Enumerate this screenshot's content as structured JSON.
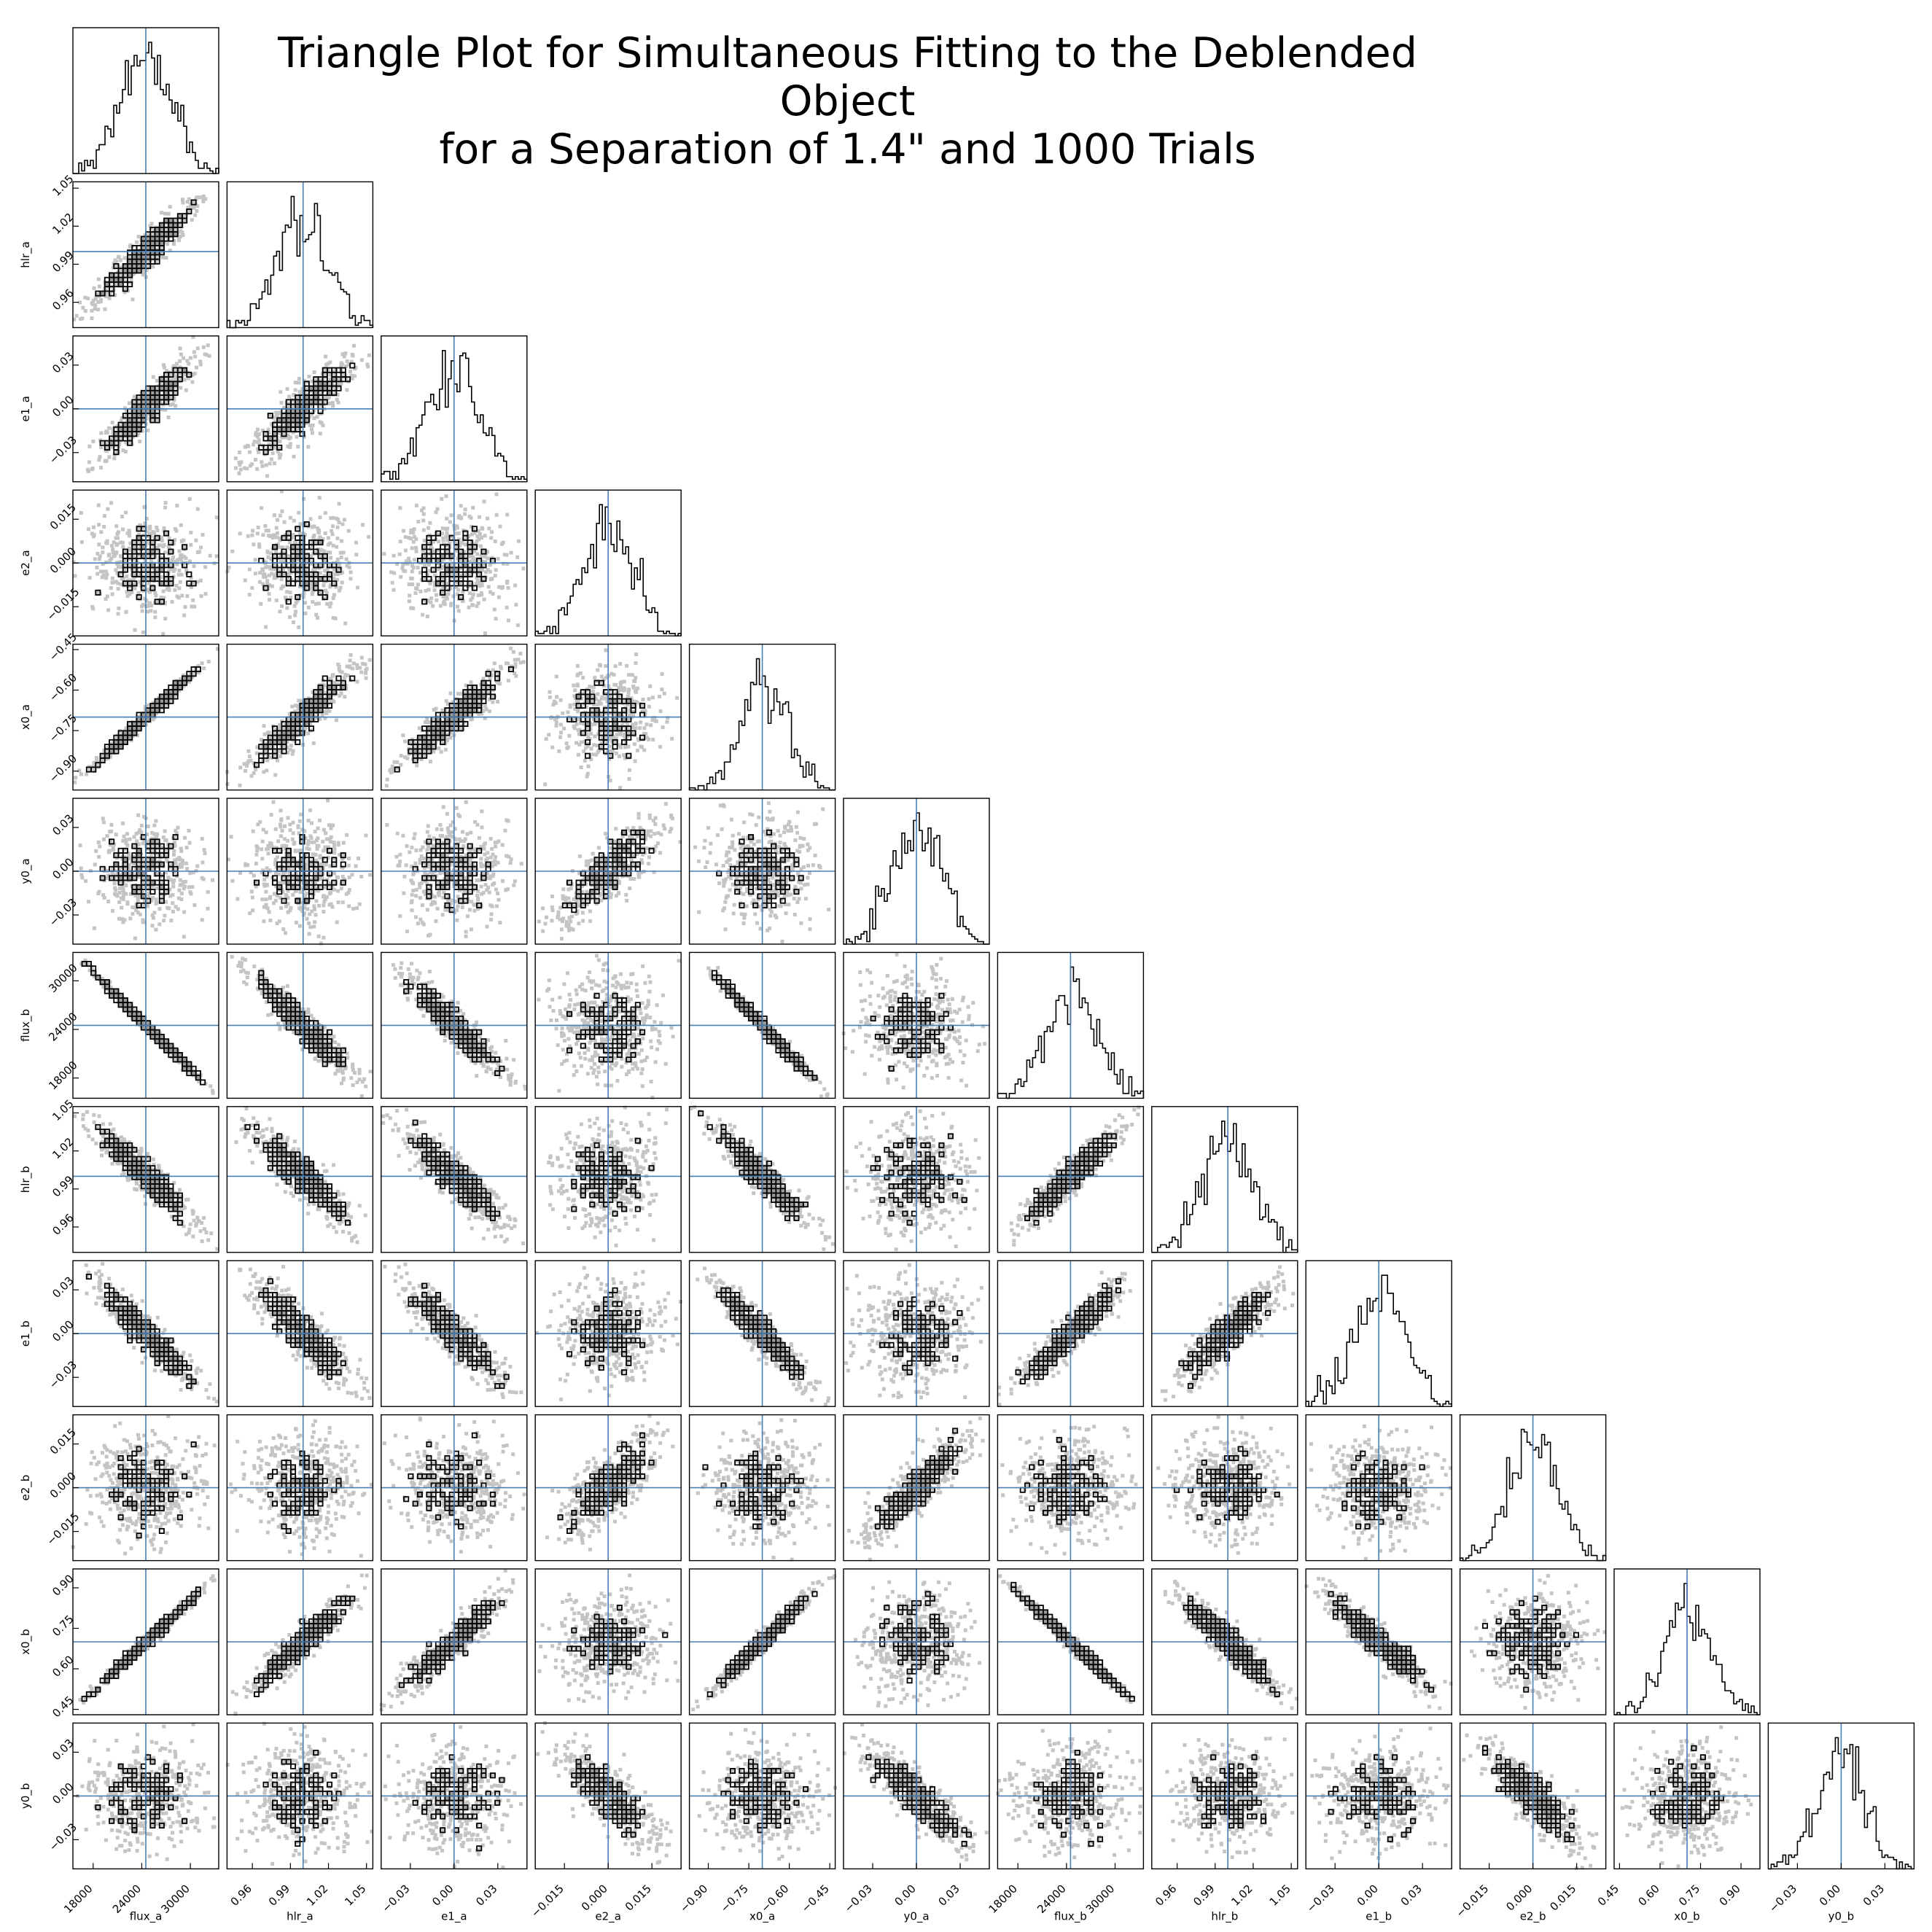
{
  "title": {
    "line1": "Triangle Plot for Simultaneous Fitting to the Deblended Object",
    "line2": "for a Separation of 1.4\" and 1000 Trials"
  },
  "colors": {
    "truth_line": "#4a7fb5",
    "scatter_points": "#c4c4c4",
    "contour": "#000000",
    "contour_fill": "#9a9a9a",
    "histogram": "#000000"
  },
  "chart_data": {
    "type": "scatter",
    "subtype": "corner-plot",
    "n_samples": 1000,
    "parameters": [
      {
        "name": "flux_a",
        "truth": 24500,
        "range": [
          15500,
          33500
        ],
        "std": 3200,
        "ticks": [
          "18000",
          "24000",
          "30000"
        ]
      },
      {
        "name": "hlr_a",
        "truth": 1.0,
        "range": [
          0.94,
          1.055
        ],
        "std": 0.02,
        "ticks": [
          "0.96",
          "0.99",
          "1.02",
          "1.05"
        ]
      },
      {
        "name": "e1_a",
        "truth": 0.0,
        "range": [
          -0.05,
          0.05
        ],
        "std": 0.018,
        "ticks": [
          "−0.03",
          "0.00",
          "0.03"
        ]
      },
      {
        "name": "e2_a",
        "truth": 0.0,
        "range": [
          -0.025,
          0.025
        ],
        "std": 0.0085,
        "ticks": [
          "−0.015",
          "0.000",
          "0.015"
        ]
      },
      {
        "name": "x0_a",
        "truth": -0.7,
        "range": [
          -0.97,
          -0.43
        ],
        "std": 0.09,
        "ticks": [
          "−0.90",
          "−0.75",
          "−0.60",
          "−0.45"
        ]
      },
      {
        "name": "y0_a",
        "truth": 0.0,
        "range": [
          -0.05,
          0.05
        ],
        "std": 0.017,
        "ticks": [
          "−0.03",
          "0.00",
          "0.03"
        ]
      },
      {
        "name": "flux_b",
        "truth": 24500,
        "range": [
          15500,
          33500
        ],
        "std": 3200,
        "ticks": [
          "18000",
          "24000",
          "30000"
        ]
      },
      {
        "name": "hlr_b",
        "truth": 1.0,
        "range": [
          0.94,
          1.055
        ],
        "std": 0.02,
        "ticks": [
          "0.96",
          "0.99",
          "1.02",
          "1.05"
        ]
      },
      {
        "name": "e1_b",
        "truth": 0.0,
        "range": [
          -0.05,
          0.05
        ],
        "std": 0.018,
        "ticks": [
          "−0.03",
          "0.00",
          "0.03"
        ]
      },
      {
        "name": "e2_b",
        "truth": 0.0,
        "range": [
          -0.025,
          0.025
        ],
        "std": 0.0085,
        "ticks": [
          "−0.015",
          "0.000",
          "0.015"
        ]
      },
      {
        "name": "x0_b",
        "truth": 0.7,
        "range": [
          0.43,
          0.97
        ],
        "std": 0.09,
        "ticks": [
          "0.45",
          "0.60",
          "0.75",
          "0.90"
        ]
      },
      {
        "name": "y0_b",
        "truth": 0.0,
        "range": [
          -0.05,
          0.05
        ],
        "std": 0.017,
        "ticks": [
          "−0.03",
          "0.00",
          "0.03"
        ]
      }
    ],
    "correlations": [
      {
        "pair": [
          "hlr_a",
          "flux_a"
        ],
        "r": 0.93
      },
      {
        "pair": [
          "e1_a",
          "flux_a"
        ],
        "r": 0.93
      },
      {
        "pair": [
          "e1_a",
          "hlr_a"
        ],
        "r": 0.88
      },
      {
        "pair": [
          "x0_a",
          "flux_a"
        ],
        "r": 0.99
      },
      {
        "pair": [
          "x0_a",
          "hlr_a"
        ],
        "r": 0.93
      },
      {
        "pair": [
          "x0_a",
          "e1_a"
        ],
        "r": 0.93
      },
      {
        "pair": [
          "y0_a",
          "e2_a"
        ],
        "r": 0.8
      },
      {
        "pair": [
          "flux_b",
          "flux_a"
        ],
        "r": -0.995
      },
      {
        "pair": [
          "flux_b",
          "hlr_a"
        ],
        "r": -0.93
      },
      {
        "pair": [
          "flux_b",
          "e1_a"
        ],
        "r": -0.93
      },
      {
        "pair": [
          "flux_b",
          "x0_a"
        ],
        "r": -0.99
      },
      {
        "pair": [
          "hlr_b",
          "flux_a"
        ],
        "r": -0.93
      },
      {
        "pair": [
          "hlr_b",
          "hlr_a"
        ],
        "r": -0.88
      },
      {
        "pair": [
          "hlr_b",
          "e1_a"
        ],
        "r": -0.88
      },
      {
        "pair": [
          "hlr_b",
          "x0_a"
        ],
        "r": -0.93
      },
      {
        "pair": [
          "hlr_b",
          "flux_b"
        ],
        "r": 0.93
      },
      {
        "pair": [
          "e1_b",
          "flux_a"
        ],
        "r": -0.93
      },
      {
        "pair": [
          "e1_b",
          "hlr_a"
        ],
        "r": -0.88
      },
      {
        "pair": [
          "e1_b",
          "e1_a"
        ],
        "r": -0.88
      },
      {
        "pair": [
          "e1_b",
          "x0_a"
        ],
        "r": -0.93
      },
      {
        "pair": [
          "e1_b",
          "flux_b"
        ],
        "r": 0.93
      },
      {
        "pair": [
          "e1_b",
          "hlr_b"
        ],
        "r": 0.88
      },
      {
        "pair": [
          "e2_b",
          "e2_a"
        ],
        "r": 0.75
      },
      {
        "pair": [
          "e2_b",
          "y0_a"
        ],
        "r": 0.85
      },
      {
        "pair": [
          "x0_b",
          "flux_a"
        ],
        "r": 0.99
      },
      {
        "pair": [
          "x0_b",
          "hlr_a"
        ],
        "r": 0.93
      },
      {
        "pair": [
          "x0_b",
          "e1_a"
        ],
        "r": 0.93
      },
      {
        "pair": [
          "x0_b",
          "x0_a"
        ],
        "r": 0.98
      },
      {
        "pair": [
          "x0_b",
          "flux_b"
        ],
        "r": -0.99
      },
      {
        "pair": [
          "x0_b",
          "hlr_b"
        ],
        "r": -0.93
      },
      {
        "pair": [
          "x0_b",
          "e1_b"
        ],
        "r": -0.93
      },
      {
        "pair": [
          "y0_b",
          "e2_a"
        ],
        "r": -0.8
      },
      {
        "pair": [
          "y0_b",
          "y0_a"
        ],
        "r": -0.85
      },
      {
        "pair": [
          "y0_b",
          "e2_b"
        ],
        "r": -0.85
      }
    ]
  }
}
